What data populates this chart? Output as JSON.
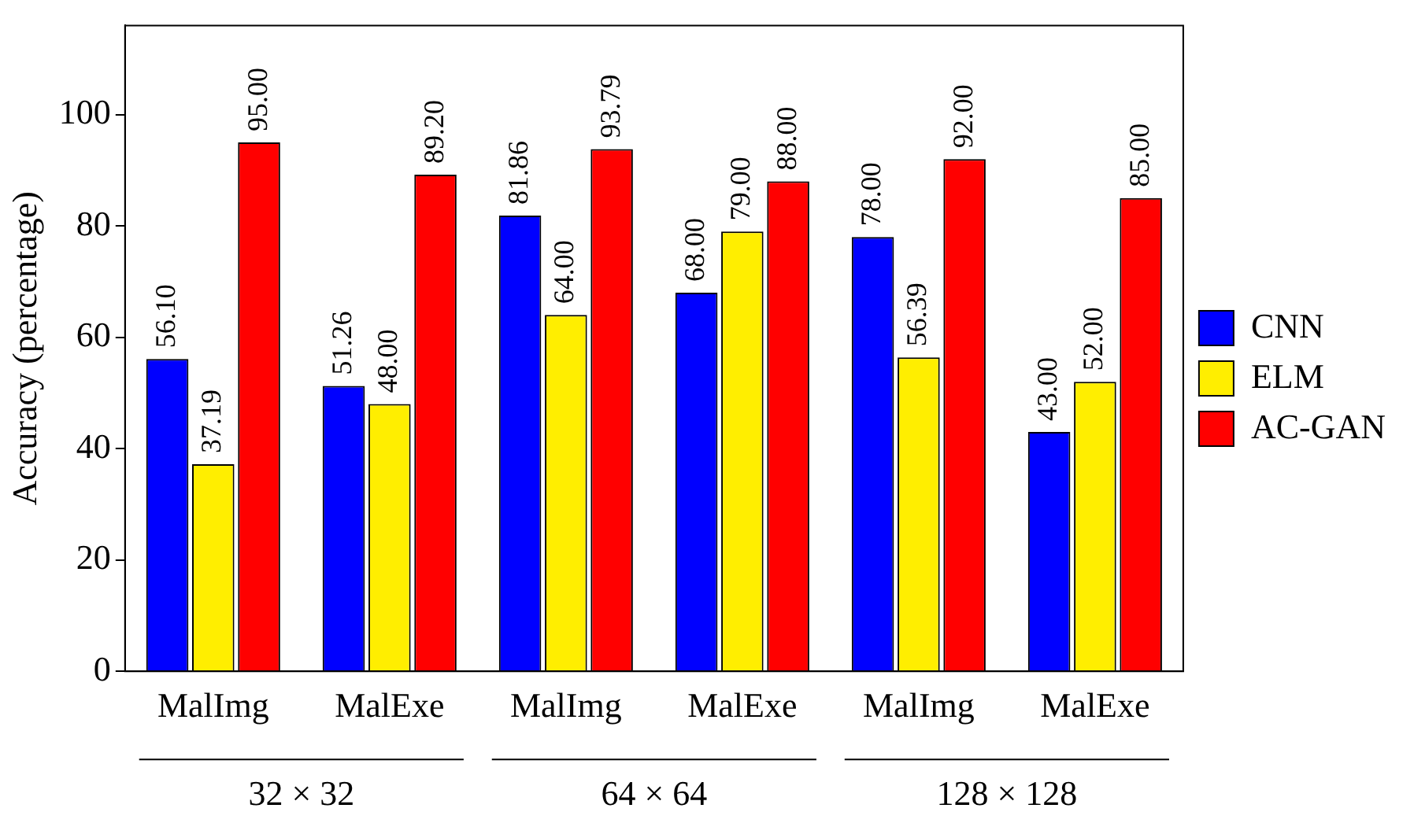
{
  "chart_data": {
    "type": "bar",
    "ylabel": "Accuracy (percentage)",
    "categories": [
      "MalImg",
      "MalExe",
      "MalImg",
      "MalExe",
      "MalImg",
      "MalExe"
    ],
    "annotations": [
      "32 × 32",
      "64 × 64",
      "128 × 128"
    ],
    "series": [
      {
        "name": "CNN",
        "color": "#0000ff",
        "values": [
          56.1,
          51.26,
          81.86,
          68,
          78,
          43
        ],
        "value_labels": [
          "56.10",
          "51.26",
          "81.86",
          "68.00",
          "78.00",
          "43.00"
        ]
      },
      {
        "name": "ELM",
        "color": "#ffee00",
        "values": [
          37.19,
          48,
          64,
          79,
          56.39,
          52
        ],
        "value_labels": [
          "37.19",
          "48.00",
          "64.00",
          "79.00",
          "56.39",
          "52.00"
        ]
      },
      {
        "name": "AC-GAN",
        "color": "#ff0000",
        "values": [
          95,
          89.2,
          93.79,
          88,
          92,
          85
        ],
        "value_labels": [
          "95.00",
          "89.20",
          "93.79",
          "88.00",
          "92.00",
          "85.00"
        ]
      }
    ],
    "ylim": [
      0,
      116
    ],
    "yticks": [
      0,
      20,
      40,
      60,
      80,
      100
    ],
    "grid": false,
    "legend": "right"
  }
}
